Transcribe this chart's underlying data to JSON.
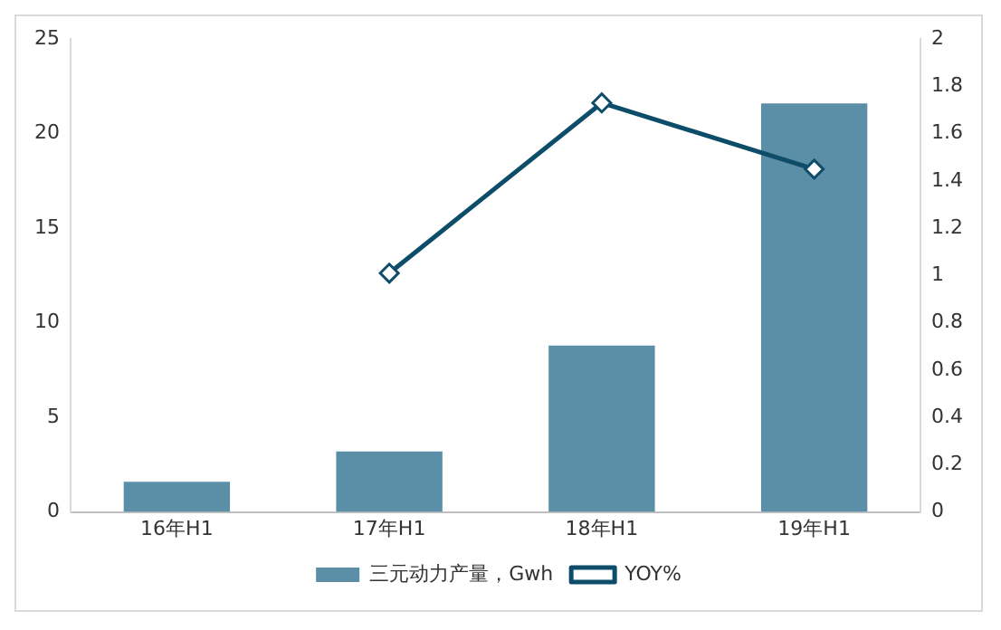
{
  "chart_data": {
    "type": "bar",
    "categories": [
      "16年H1",
      "17年H1",
      "18年H1",
      "19年H1"
    ],
    "series": [
      {
        "name": "三元动力产量，Gwh",
        "color": "#5b8fa8",
        "values": [
          1.6,
          3.2,
          8.8,
          21.6
        ]
      },
      {
        "name": "YOY%",
        "type": "line",
        "axis": "y2",
        "color": "#0e4d6a",
        "marker": "diamond",
        "values": [
          null,
          1.01,
          1.73,
          1.45
        ]
      }
    ],
    "ylim": [
      0,
      25
    ],
    "yticks": [
      0,
      5,
      10,
      15,
      20,
      25
    ],
    "y2lim": [
      0,
      2
    ],
    "y2ticks": [
      0,
      0.2,
      0.4,
      0.6,
      0.8,
      1,
      1.2,
      1.4,
      1.6,
      1.8,
      2
    ],
    "grid": false,
    "legend": "bottom"
  }
}
